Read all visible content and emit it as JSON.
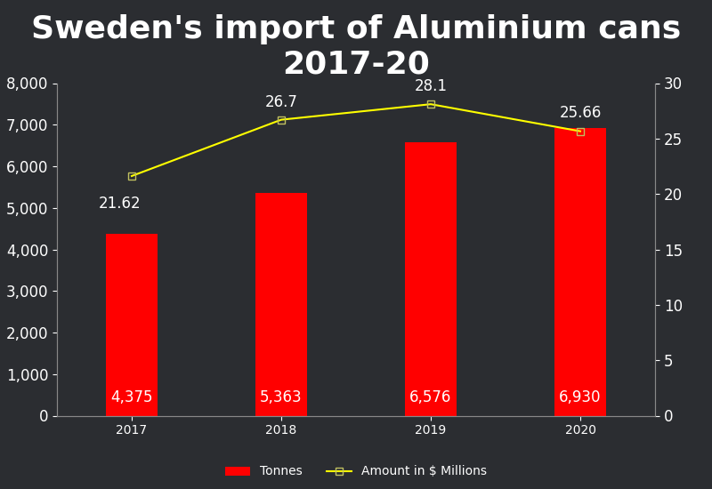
{
  "chart_data": {
    "type": "bar",
    "title": "Sweden's import of Aluminium cans 2017-20",
    "categories": [
      "2017",
      "2018",
      "2019",
      "2020"
    ],
    "series": [
      {
        "name": "Tonnes",
        "type": "bar",
        "color": "#ff0000",
        "values": [
          4375,
          5363,
          6576,
          6930
        ],
        "value_labels": [
          "4,375",
          "5,363",
          "6,576",
          "6,930"
        ]
      },
      {
        "name": "Amount in $ Millions",
        "type": "line",
        "color": "#ffff00",
        "marker": "square",
        "axis": "y2",
        "values": [
          21.62,
          26.7,
          28.1,
          25.66
        ]
      }
    ],
    "ylim": [
      0,
      8000
    ],
    "yticks": [
      0,
      {
        "value": 1000,
        "label": "1,000"
      },
      {
        "value": 2000,
        "label": "2,000"
      },
      {
        "value": 3000,
        "label": "3,000"
      },
      {
        "value": 4000,
        "label": "4,000"
      },
      {
        "value": 5000,
        "label": "5,000"
      },
      {
        "value": 6000,
        "label": "6,000"
      },
      {
        "value": 7000,
        "label": "7,000"
      },
      {
        "value": 8000,
        "label": "8,000"
      }
    ],
    "y2lim": [
      0,
      30
    ],
    "y2ticks": [
      0,
      5,
      10,
      15,
      20,
      25,
      30
    ],
    "grid": false,
    "data_labels": true,
    "legend": "lower center"
  }
}
